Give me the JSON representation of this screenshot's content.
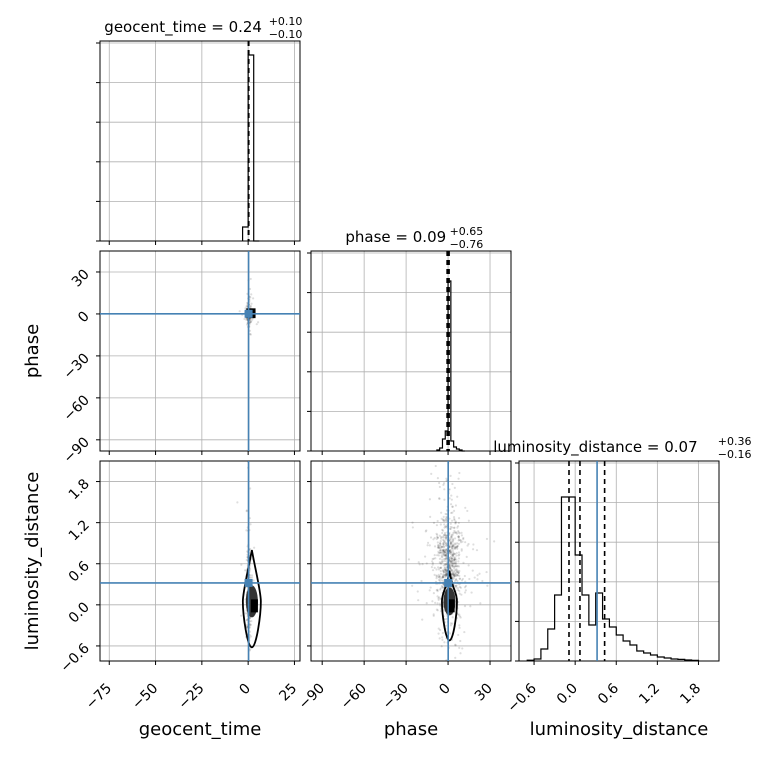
{
  "chart_data": {
    "type": "corner",
    "parameters": [
      "geocent_time",
      "phase",
      "luminosity_distance"
    ],
    "truths": {
      "geocent_time": 0.24,
      "phase": 0.09,
      "luminosity_distance": 0.32
    },
    "truth_color": "#4682b4",
    "titles": [
      {
        "parameter": "geocent_time",
        "text": "geocent_time = 0.24",
        "plus": "+0.10",
        "minus": "−0.10",
        "median": 0.24,
        "q_lo": 0.14,
        "q_hi": 0.34
      },
      {
        "parameter": "phase",
        "text": "phase = 0.09",
        "plus": "+0.65",
        "minus": "−0.76",
        "median": 0.09,
        "q_lo": -0.67,
        "q_hi": 0.74
      },
      {
        "parameter": "luminosity_distance",
        "text": "luminosity_distance = 0.07",
        "plus": "+0.36",
        "minus": "−0.16",
        "median": 0.07,
        "q_lo": -0.09,
        "q_hi": 0.43
      }
    ],
    "axes": {
      "geocent_time": {
        "label": "geocent_time",
        "range": [
          -80,
          28
        ],
        "ticks": [
          -75,
          -50,
          -25,
          0,
          25
        ],
        "tick_labels": [
          "−75",
          "−50",
          "−25",
          "0",
          "25"
        ]
      },
      "phase": {
        "label": "phase",
        "range": [
          -98,
          45
        ],
        "ticks": [
          -90,
          -60,
          -30,
          0,
          30
        ],
        "tick_labels": [
          "−90",
          "−60",
          "−30",
          "0",
          "30"
        ]
      },
      "luminosity_distance": {
        "label": "luminosity_distance",
        "range": [
          -0.82,
          2.1
        ],
        "ticks": [
          -0.6,
          0,
          0.6,
          1.2,
          1.8
        ],
        "tick_labels": [
          "−0.6",
          "0.0",
          "0.6",
          "1.2",
          "1.8"
        ]
      }
    },
    "hist_geocent_time": {
      "edges": [
        -3,
        0,
        3,
        6
      ],
      "counts": [
        0.07,
        0.93,
        0.0
      ]
    },
    "hist_phase": {
      "edges": [
        -8,
        -6,
        -4,
        -2,
        0,
        2,
        4,
        6,
        8,
        10,
        12
      ],
      "counts": [
        0.005,
        0.015,
        0.06,
        0.1,
        0.85,
        0.05,
        0.02,
        0.01,
        0.005,
        0.0
      ]
    },
    "hist_luminosity_distance": {
      "edges": [
        -0.7,
        -0.6,
        -0.5,
        -0.4,
        -0.3,
        -0.2,
        -0.1,
        0.0,
        0.1,
        0.2,
        0.3,
        0.4,
        0.5,
        0.6,
        0.7,
        0.8,
        0.9,
        1.0,
        1.1,
        1.2,
        1.3,
        1.4,
        1.5,
        1.6,
        1.7,
        1.8
      ],
      "counts": [
        0.004,
        0.01,
        0.06,
        0.16,
        0.33,
        0.82,
        0.82,
        0.53,
        0.33,
        0.18,
        0.34,
        0.21,
        0.17,
        0.13,
        0.1,
        0.08,
        0.05,
        0.04,
        0.03,
        0.02,
        0.015,
        0.01,
        0.008,
        0.005,
        0.003
      ]
    },
    "grid": true
  }
}
